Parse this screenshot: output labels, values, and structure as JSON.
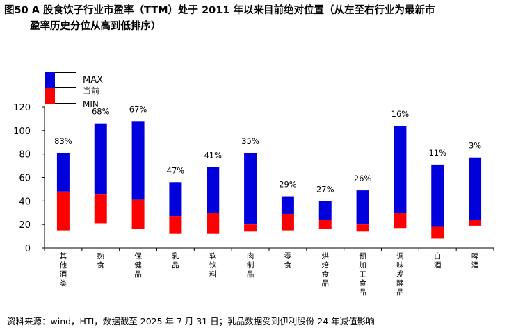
{
  "header": {
    "title_line1": "图50 A 股食饮子行业市盈率（TTM）处于 2011 年以来目前绝对位置（从左至右行业为最新市",
    "title_line2": "盈率历史分位从高到低排序）"
  },
  "footer": {
    "source": "资料来源：wind，HTI，数据截至 2025 年 7 月 31 日；乳品数据受到伊利股份 24 年减值影响"
  },
  "colors": {
    "max_bar": "#0000dd",
    "current_bar": "#ff0000",
    "axis": "#000000"
  },
  "chart_data": {
    "type": "bar",
    "subtype": "floating-range",
    "title": "",
    "xlabel": "",
    "ylabel": "",
    "ylim": [
      0,
      120
    ],
    "yticks": [
      "0",
      "20",
      "40",
      "60",
      "80",
      "100",
      "120"
    ],
    "legend": {
      "position": "top-left",
      "entries": [
        "MAX",
        "当前",
        "MIN"
      ]
    },
    "categories": [
      "其他酒类",
      "熟食",
      "保健品",
      "乳品",
      "软饮料",
      "肉制品",
      "零食",
      "烘焙食品",
      "预加工食品",
      "调味发酵品",
      "白酒",
      "啤酒"
    ],
    "series": [
      {
        "name": "MAX",
        "values": [
          81,
          106,
          108,
          56,
          69,
          81,
          44,
          40,
          49,
          104,
          71,
          77
        ]
      },
      {
        "name": "当前",
        "values": [
          48,
          46,
          41,
          27,
          30,
          20,
          29,
          24,
          20,
          30,
          18,
          24
        ]
      },
      {
        "name": "MIN",
        "values": [
          15,
          21,
          16,
          12,
          12,
          14,
          15,
          16,
          14,
          17,
          8,
          19
        ]
      }
    ],
    "percentile_labels": [
      "83%",
      "68%",
      "67%",
      "47%",
      "41%",
      "35%",
      "29%",
      "27%",
      "26%",
      "16%",
      "11%",
      "3%"
    ]
  }
}
